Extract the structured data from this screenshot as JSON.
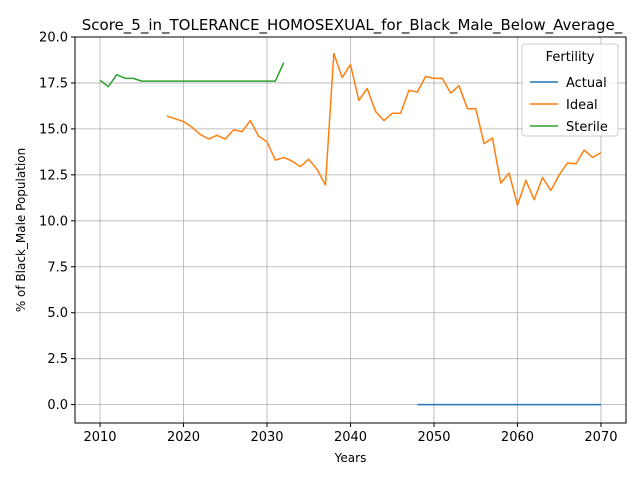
{
  "chart_data": {
    "type": "line",
    "title": "Score_5_in_TOLERANCE_HOMOSEXUAL_for_Black_Male_Below_Average_",
    "xlabel": "Years",
    "ylabel": "% of Black_Male Population",
    "xlim": [
      2007,
      2073
    ],
    "ylim": [
      -1,
      20
    ],
    "x_ticks": [
      2010,
      2020,
      2030,
      2040,
      2050,
      2060,
      2070
    ],
    "y_ticks": [
      0.0,
      2.5,
      5.0,
      7.5,
      10.0,
      12.5,
      15.0,
      17.5,
      20.0
    ],
    "x_tick_labels": [
      "2010",
      "2020",
      "2030",
      "2040",
      "2050",
      "2060",
      "2070"
    ],
    "y_tick_labels": [
      "0.0",
      "2.5",
      "5.0",
      "7.5",
      "10.0",
      "12.5",
      "15.0",
      "17.5",
      "20.0"
    ],
    "grid": true,
    "legend": {
      "title": "Fertility",
      "placement": "upper right"
    },
    "series": [
      {
        "name": "Actual",
        "color": "#1f77b4",
        "x": [
          2048,
          2049,
          2050,
          2051,
          2052,
          2053,
          2054,
          2055,
          2056,
          2057,
          2058,
          2059,
          2060,
          2061,
          2062,
          2063,
          2064,
          2065,
          2066,
          2067,
          2068,
          2069,
          2070
        ],
        "y": [
          0,
          0,
          0,
          0,
          0,
          0,
          0,
          0,
          0,
          0,
          0,
          0,
          0,
          0,
          0,
          0,
          0,
          0,
          0,
          0,
          0,
          0,
          0
        ]
      },
      {
        "name": "Ideal",
        "color": "#ff7f0e",
        "x": [
          2018,
          2019,
          2020,
          2021,
          2022,
          2023,
          2024,
          2025,
          2026,
          2027,
          2028,
          2029,
          2030,
          2031,
          2032,
          2033,
          2034,
          2035,
          2036,
          2037,
          2038,
          2039,
          2040,
          2041,
          2042,
          2043,
          2044,
          2045,
          2046,
          2047,
          2048,
          2049,
          2050,
          2051,
          2052,
          2053,
          2054,
          2055,
          2056,
          2057,
          2058,
          2059,
          2060,
          2061,
          2062,
          2063,
          2064,
          2065,
          2066,
          2067,
          2068,
          2069,
          2070
        ],
        "y": [
          15.7,
          15.55,
          15.4,
          15.1,
          14.7,
          14.45,
          14.65,
          14.45,
          14.95,
          14.85,
          15.45,
          14.6,
          14.3,
          13.3,
          13.45,
          13.25,
          12.95,
          13.35,
          12.8,
          11.95,
          19.1,
          17.8,
          18.5,
          16.55,
          17.2,
          15.95,
          15.45,
          15.85,
          15.85,
          17.1,
          17.0,
          17.85,
          17.75,
          17.75,
          16.95,
          17.35,
          16.1,
          16.1,
          14.2,
          14.5,
          12.05,
          12.6,
          10.85,
          12.2,
          11.15,
          12.35,
          11.65,
          12.5,
          13.15,
          13.1,
          13.85,
          13.45,
          13.7
        ]
      },
      {
        "name": "Sterile",
        "color": "#2ca02c",
        "x": [
          2010,
          2011,
          2012,
          2013,
          2014,
          2015,
          2016,
          2017,
          2018,
          2019,
          2020,
          2021,
          2022,
          2023,
          2024,
          2025,
          2026,
          2027,
          2028,
          2029,
          2030,
          2031,
          2032
        ],
        "y": [
          17.65,
          17.3,
          17.95,
          17.75,
          17.75,
          17.6,
          17.6,
          17.6,
          17.6,
          17.6,
          17.6,
          17.6,
          17.6,
          17.6,
          17.6,
          17.6,
          17.6,
          17.6,
          17.6,
          17.6,
          17.6,
          17.6,
          18.6
        ]
      }
    ]
  }
}
